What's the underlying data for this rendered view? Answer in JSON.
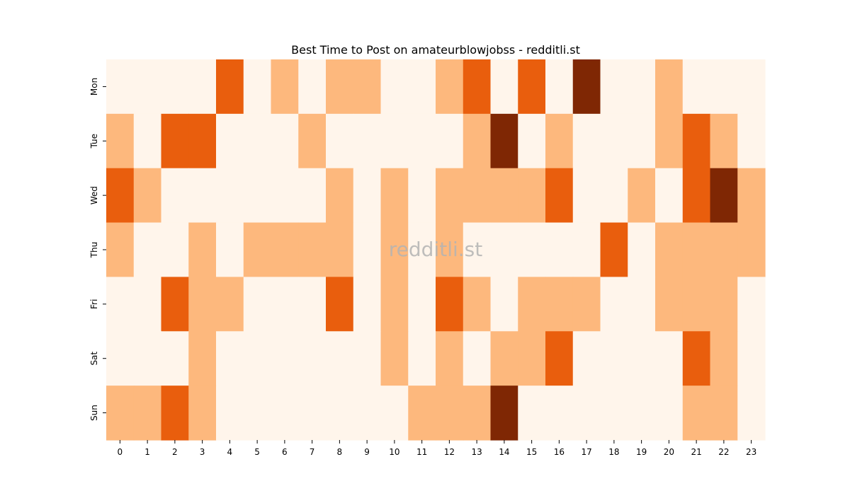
{
  "chart_data": {
    "type": "heatmap",
    "title": "Best Time to Post on amateurblowjobss - redditli.st",
    "xlabel": "",
    "ylabel": "",
    "x_categories": [
      "0",
      "1",
      "2",
      "3",
      "4",
      "5",
      "6",
      "7",
      "8",
      "9",
      "10",
      "11",
      "12",
      "13",
      "14",
      "15",
      "16",
      "17",
      "18",
      "19",
      "20",
      "21",
      "22",
      "23"
    ],
    "y_categories": [
      "Mon",
      "Tue",
      "Wed",
      "Thu",
      "Fri",
      "Sat",
      "Sun"
    ],
    "values": [
      [
        0,
        0,
        0,
        0,
        2,
        0,
        1,
        0,
        1,
        1,
        0,
        0,
        1,
        2,
        0,
        2,
        0,
        3,
        0,
        0,
        1,
        0,
        0,
        0
      ],
      [
        1,
        0,
        2,
        2,
        0,
        0,
        0,
        1,
        0,
        0,
        0,
        0,
        0,
        1,
        3,
        0,
        1,
        0,
        0,
        0,
        1,
        2,
        1,
        0
      ],
      [
        2,
        1,
        0,
        0,
        0,
        0,
        0,
        0,
        1,
        0,
        1,
        0,
        1,
        1,
        1,
        1,
        2,
        0,
        0,
        1,
        0,
        2,
        3,
        1
      ],
      [
        1,
        0,
        0,
        1,
        0,
        1,
        1,
        1,
        1,
        0,
        1,
        0,
        1,
        0,
        0,
        0,
        0,
        0,
        2,
        0,
        1,
        1,
        1,
        1
      ],
      [
        0,
        0,
        2,
        1,
        1,
        0,
        0,
        0,
        2,
        0,
        1,
        0,
        2,
        1,
        0,
        1,
        1,
        1,
        0,
        0,
        1,
        1,
        1,
        0
      ],
      [
        0,
        0,
        0,
        1,
        0,
        0,
        0,
        0,
        0,
        0,
        1,
        0,
        1,
        0,
        1,
        1,
        2,
        0,
        0,
        0,
        0,
        2,
        1,
        0
      ],
      [
        1,
        1,
        2,
        1,
        0,
        0,
        0,
        0,
        0,
        0,
        0,
        1,
        1,
        1,
        3,
        0,
        0,
        0,
        0,
        0,
        0,
        1,
        1,
        0
      ]
    ],
    "value_range": [
      0,
      3
    ],
    "colormap": [
      "#fff5eb",
      "#fdb87d",
      "#e95e0d",
      "#7f2704"
    ],
    "colorbar": false,
    "grid": false,
    "watermark": "redditli.st"
  }
}
